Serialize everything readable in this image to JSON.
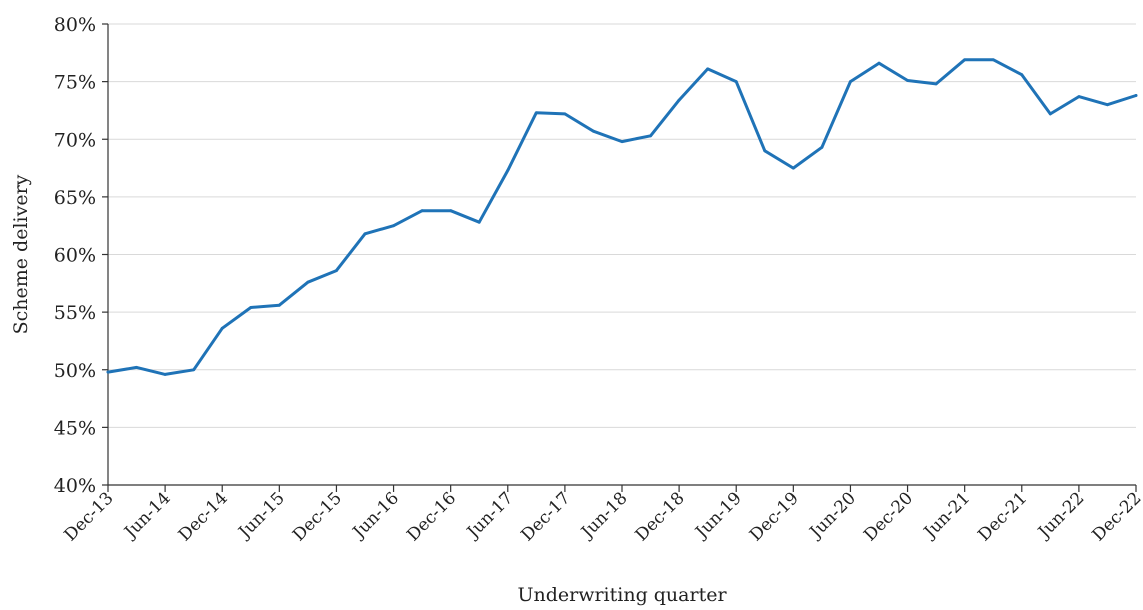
{
  "chart_data": {
    "type": "line",
    "xlabel": "Underwriting quarter",
    "ylabel": "Scheme delivery",
    "ylim": [
      40,
      80
    ],
    "ytick_values": [
      40,
      45,
      50,
      55,
      60,
      65,
      70,
      75,
      80
    ],
    "ytick_labels": [
      "40%",
      "45%",
      "50%",
      "55%",
      "60%",
      "65%",
      "70%",
      "75%",
      "80%"
    ],
    "y_unit": "%",
    "grid": "horizontal",
    "legend": "none",
    "x": [
      "Dec-13",
      "Mar-14",
      "Jun-14",
      "Sep-14",
      "Dec-14",
      "Mar-15",
      "Jun-15",
      "Sep-15",
      "Dec-15",
      "Mar-16",
      "Jun-16",
      "Sep-16",
      "Dec-16",
      "Mar-17",
      "Jun-17",
      "Sep-17",
      "Dec-17",
      "Mar-18",
      "Jun-18",
      "Sep-18",
      "Dec-18",
      "Mar-19",
      "Jun-19",
      "Sep-19",
      "Dec-19",
      "Mar-20",
      "Jun-20",
      "Sep-20",
      "Dec-20",
      "Mar-21",
      "Jun-21",
      "Sep-21",
      "Dec-21",
      "Mar-22",
      "Jun-22",
      "Sep-22",
      "Dec-22"
    ],
    "x_tick_labels": [
      "Dec-13",
      "Jun-14",
      "Dec-14",
      "Jun-15",
      "Dec-15",
      "Jun-16",
      "Dec-16",
      "Jun-17",
      "Dec-17",
      "Jun-18",
      "Dec-18",
      "Jun-19",
      "Dec-19",
      "Jun-20",
      "Dec-20",
      "Jun-21",
      "Dec-21",
      "Jun-22",
      "Dec-22"
    ],
    "series": [
      {
        "color": "#1f73b7",
        "values": [
          49.8,
          50.2,
          49.6,
          50.0,
          53.6,
          55.4,
          55.6,
          57.6,
          58.6,
          61.8,
          62.5,
          63.8,
          63.8,
          62.8,
          67.3,
          72.3,
          72.2,
          70.7,
          69.8,
          70.3,
          73.4,
          76.1,
          75.0,
          69.0,
          67.5,
          69.3,
          75.0,
          76.6,
          75.1,
          74.8,
          76.9,
          76.9,
          75.6,
          72.2,
          73.7,
          73.0,
          73.8
        ]
      }
    ]
  }
}
